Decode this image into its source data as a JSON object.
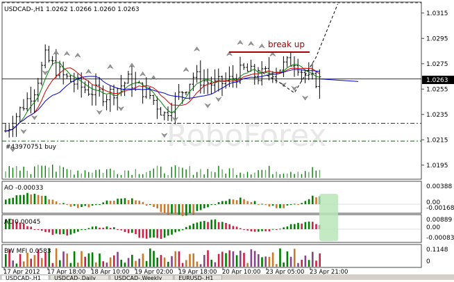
{
  "header": {
    "symbol_tf": "USDCAD-,H1",
    "ohlc": "1.0262 1.0266 1.0260 1.0263"
  },
  "watermark": "RoboForex",
  "annotations": {
    "breakout": "break up",
    "order": "#43970751 buy"
  },
  "price_axis": {
    "ticks": [
      "1.0315",
      "1.0295",
      "1.0275",
      "1.0255",
      "1.0235",
      "1.0215",
      "1.0195"
    ],
    "current_price": "1.0263"
  },
  "ao": {
    "label": "AO -0.00033",
    "ticks": [
      "0.00388",
      "0.00",
      "-0.00168"
    ]
  },
  "ac": {
    "label": "AC 0.00045",
    "ticks": [
      "0.00889",
      "0.00",
      "-0.00083"
    ]
  },
  "bwmfi": {
    "label": "BW MFI 0.0583",
    "ticks": [
      "0.1148",
      "0"
    ]
  },
  "time_axis": {
    "ticks": [
      "17 Apr 2012",
      "17 Apr 18:00",
      "18 Apr 10:00",
      "19 Apr 02:00",
      "19 Apr 18:00",
      "20 Apr 10:00",
      "23 Apr 05:00",
      "23 Apr 21:00"
    ]
  },
  "tabs": [
    "USDCAD-,H1",
    "USDCAD-,Daily",
    "USDCAD-,Weekly",
    "EURUSD-,H1"
  ],
  "colors": {
    "bull": "#008000",
    "bear": "#cc0000",
    "ma_green": "#008000",
    "ma_blue": "#0000cc",
    "ma_red": "#cc0000",
    "ao_bear": "#cc7a2a",
    "ac_bear": "#cc2244",
    "highlight": "#b8e6b8",
    "level_red": "#aa0000",
    "level_green": "#006600"
  },
  "chart_data": {
    "type": "candlestick",
    "title": "",
    "y_range": [
      1.0185,
      1.0322
    ],
    "levels": {
      "resistance": 1.0285,
      "upper_stop": 1.0228,
      "lower_stop": 1.0214,
      "current": 1.0263
    },
    "forecast_path": [
      [
        70,
        1.027
      ],
      [
        76,
        1.026
      ],
      [
        80,
        1.0252
      ],
      [
        86,
        1.028
      ],
      [
        92,
        1.0322
      ]
    ]
  }
}
